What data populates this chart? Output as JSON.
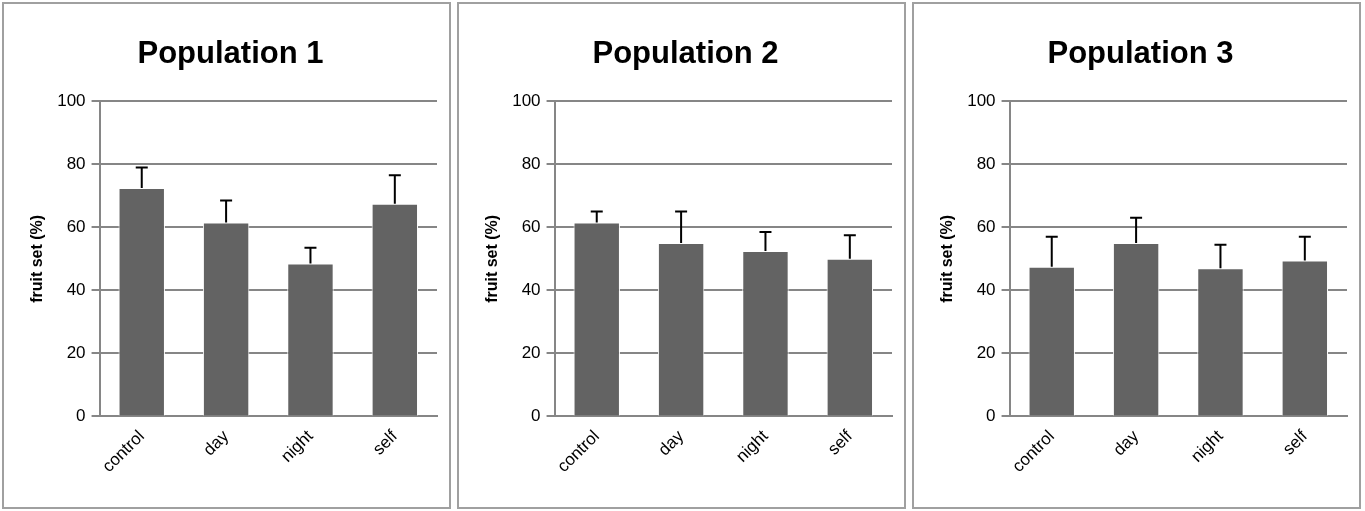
{
  "chart_data": [
    {
      "type": "bar",
      "title": "Population 1",
      "ylabel": "fruit set (%)",
      "categories": [
        "control",
        "day",
        "night",
        "self"
      ],
      "values": [
        72.5,
        61.5,
        48.5,
        67.5
      ],
      "errors": [
        [
          72.5,
          79
        ],
        [
          61.5,
          68.5
        ],
        [
          48.5,
          53.5
        ],
        [
          67.5,
          76.5
        ]
      ],
      "color": "#636363",
      "ylim": [
        0,
        100
      ],
      "yticks": [
        0,
        20,
        40,
        60,
        80,
        100
      ],
      "grid": "y"
    },
    {
      "type": "bar",
      "title": "Population 2",
      "ylabel": "fruit set (%)",
      "categories": [
        "control",
        "day",
        "night",
        "self"
      ],
      "values": [
        61.5,
        55,
        52.5,
        50
      ],
      "errors": [
        [
          61.5,
          65
        ],
        [
          55,
          65
        ],
        [
          52.5,
          58.5
        ],
        [
          50,
          57.5
        ]
      ],
      "color": "#636363",
      "ylim": [
        0,
        100
      ],
      "yticks": [
        0,
        20,
        40,
        60,
        80,
        100
      ],
      "grid": "y"
    },
    {
      "type": "bar",
      "title": "Population 3",
      "ylabel": "fruit set (%)",
      "categories": [
        "control",
        "day",
        "night",
        "self"
      ],
      "values": [
        47.5,
        55,
        47,
        49.5
      ],
      "errors": [
        [
          47.5,
          57
        ],
        [
          55,
          63
        ],
        [
          47,
          54.5
        ],
        [
          49.5,
          57
        ]
      ],
      "color": "#636363",
      "ylim": [
        0,
        100
      ],
      "yticks": [
        0,
        20,
        40,
        60,
        80,
        100
      ],
      "grid": "y"
    }
  ]
}
